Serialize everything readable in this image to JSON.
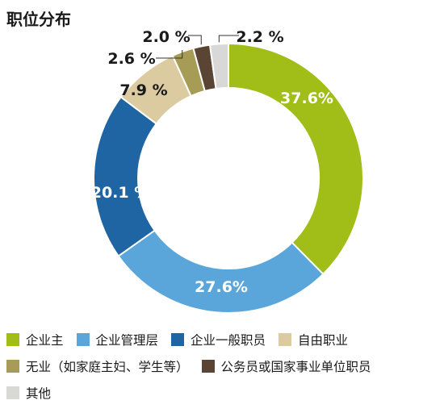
{
  "title": "职位分布",
  "chart_data": {
    "type": "pie",
    "donut": true,
    "categories": [
      "企业主",
      "企业管理层",
      "企业一般职员",
      "自由职业",
      "无业（如家庭主妇、学生等）",
      "公务员或国家事业单位职员",
      "其他"
    ],
    "values": [
      37.6,
      27.6,
      20.1,
      7.9,
      2.6,
      2.0,
      2.2
    ],
    "labels": [
      "37.6%",
      "27.6%",
      "20.1 %",
      "7.9 %",
      "2.6 %",
      "2.0 %",
      "2.2 %"
    ],
    "colors": [
      "#a1bd18",
      "#5aa6da",
      "#1f64a3",
      "#dccba0",
      "#a79c56",
      "#5a4434",
      "#d8d9d6"
    ],
    "start_angle_deg": 0,
    "direction": "clockwise",
    "legend_position": "bottom"
  },
  "legend": {
    "rows": [
      [
        0,
        1,
        2,
        3
      ],
      [
        4,
        5
      ],
      [
        6
      ]
    ]
  }
}
